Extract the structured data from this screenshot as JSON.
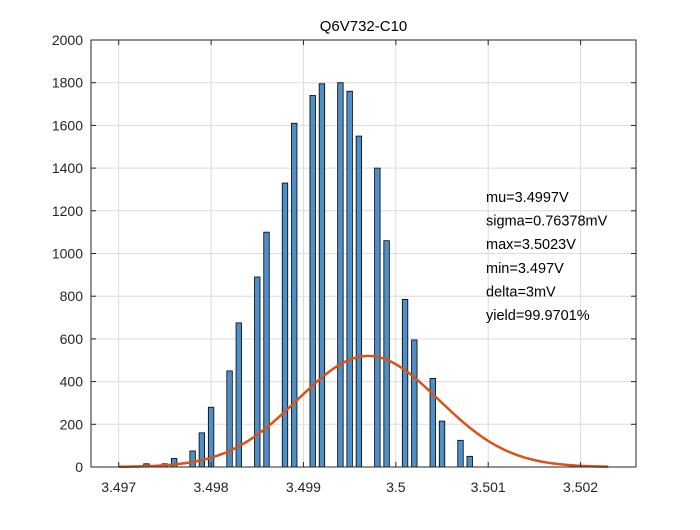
{
  "chart_data": {
    "type": "bar",
    "title": "Q6V732-C10",
    "xlabel": "",
    "ylabel": "",
    "xlim": [
      3.4967,
      3.5026
    ],
    "ylim": [
      0,
      2000
    ],
    "grid": true,
    "xticks": [
      3.497,
      3.498,
      3.499,
      3.5,
      3.501,
      3.502
    ],
    "xtick_labels": [
      "3.497",
      "3.498",
      "3.499",
      "3.5",
      "3.501",
      "3.502"
    ],
    "yticks": [
      0,
      200,
      400,
      600,
      800,
      1000,
      1200,
      1400,
      1600,
      1800,
      2000
    ],
    "ytick_labels": [
      "0",
      "200",
      "400",
      "600",
      "800",
      "1000",
      "1200",
      "1400",
      "1600",
      "1800",
      "2000"
    ],
    "bar_color": "#4f8fc7",
    "bar_edge_color": "#000000",
    "fit_color": "#d95319",
    "histogram": {
      "x": [
        3.4973,
        3.4975,
        3.4976,
        3.4978,
        3.4979,
        3.498,
        3.4982,
        3.4983,
        3.4985,
        3.4986,
        3.4988,
        3.4989,
        3.4991,
        3.4992,
        3.4994,
        3.4995,
        3.4996,
        3.4998,
        3.4999,
        3.5001,
        3.5002,
        3.5004,
        3.5005,
        3.5007,
        3.5008,
        3.501,
        3.5011,
        3.5013,
        3.5014,
        3.5016
      ],
      "y": [
        15,
        15,
        40,
        75,
        160,
        280,
        450,
        675,
        890,
        1100,
        1330,
        1610,
        1740,
        1795,
        1800,
        1760,
        1550,
        1400,
        1060,
        785,
        595,
        415,
        215,
        125,
        50,
        0,
        0,
        0,
        0,
        0
      ]
    },
    "fit_curve": {
      "mu": 3.4997,
      "sigma": 0.00076378,
      "peak": 520,
      "x_range": [
        3.497,
        3.5023
      ]
    },
    "annotation_lines": [
      "mu=3.4997V",
      "sigma=0.76378mV",
      "max=3.5023V",
      "min=3.497V",
      "delta=3mV",
      "yield=99.9701%"
    ]
  }
}
